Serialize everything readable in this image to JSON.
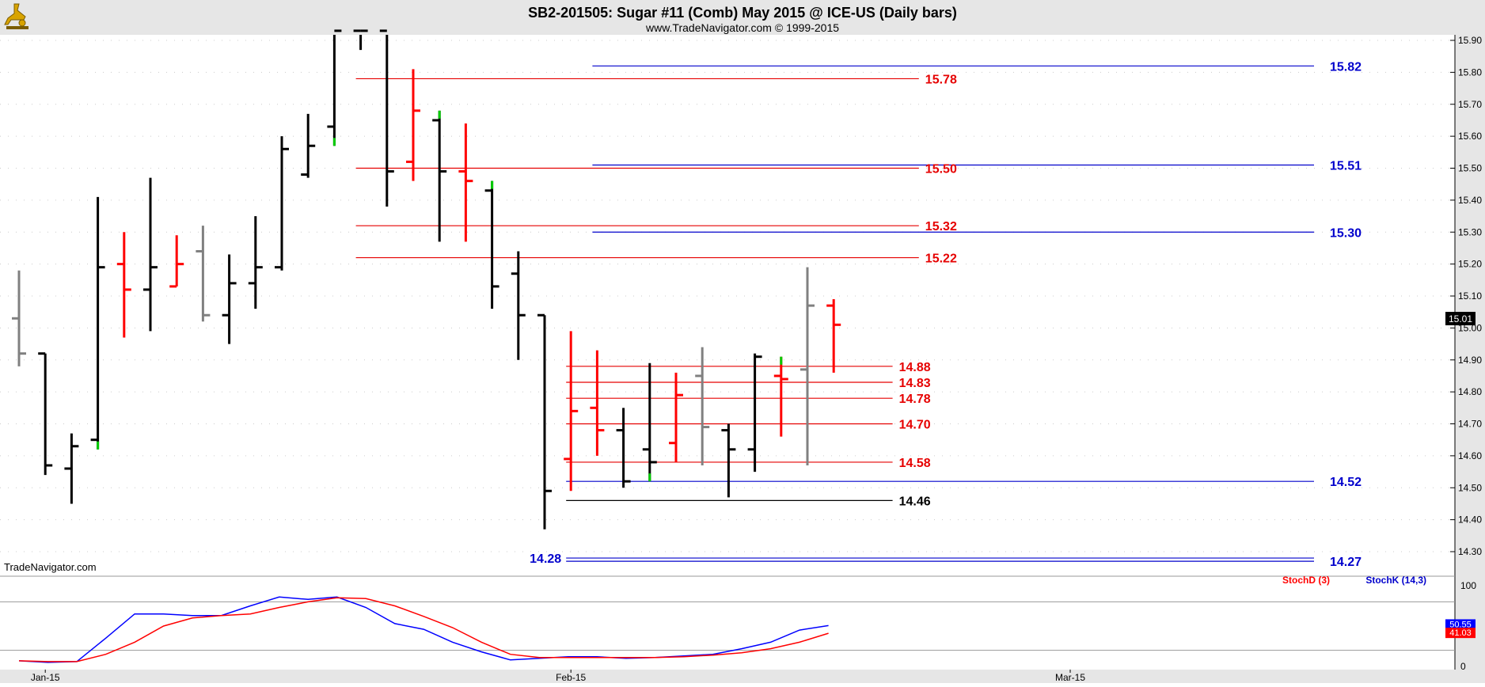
{
  "header": {
    "title": "SB2-201505:  Sugar #11 (Comb) May 2015 @ ICE-US  (Daily bars)",
    "subtitle": "www.TradeNavigator.com © 1999-2015",
    "logo_icon": "trade-navigator-logo-icon"
  },
  "watermark": "TradeNavigator.com",
  "colors": {
    "background": "#ffffff",
    "frame": "#e6e6e6",
    "black_bar": "#000000",
    "red_bar": "#ff0000",
    "gray_bar": "#808080",
    "green_accent": "#00cc00",
    "red_level": "#e60000",
    "blue_level": "#0000cc",
    "black_level": "#000000",
    "stoch_d": "#ff0000",
    "stoch_k": "#0000ff"
  },
  "chart_data": [
    {
      "type": "ohlc",
      "title": "SB2-201505:  Sugar #11 (Comb) May 2015 @ ICE-US  (Daily bars)",
      "ylim": [
        14.2,
        15.93
      ],
      "y_ticks": [
        "15.90",
        "15.80",
        "15.70",
        "15.60",
        "15.50",
        "15.40",
        "15.30",
        "15.20",
        "15.10",
        "15.00",
        "14.90",
        "14.80",
        "14.70",
        "14.60",
        "14.50",
        "14.40",
        "14.30"
      ],
      "x_labels": [
        {
          "label": "Jan-15",
          "bar": 1
        },
        {
          "label": "Feb-15",
          "bar": 21
        },
        {
          "label": "Mar-15",
          "bar": 40
        }
      ],
      "last_price": "15.01",
      "bars": [
        {
          "o": 15.03,
          "h": 15.18,
          "l": 14.88,
          "c": 14.92,
          "color": "gray"
        },
        {
          "o": 14.92,
          "h": 14.92,
          "l": 14.54,
          "c": 14.57,
          "color": "black"
        },
        {
          "o": 14.56,
          "h": 14.67,
          "l": 14.45,
          "c": 14.63,
          "color": "black"
        },
        {
          "o": 14.65,
          "h": 15.41,
          "l": 14.62,
          "c": 15.19,
          "color": "black",
          "green_tail": "low"
        },
        {
          "o": 15.2,
          "h": 15.3,
          "l": 14.97,
          "c": 15.12,
          "color": "red"
        },
        {
          "o": 15.12,
          "h": 15.47,
          "l": 14.99,
          "c": 15.19,
          "color": "black"
        },
        {
          "o": 15.13,
          "h": 15.29,
          "l": 15.13,
          "c": 15.2,
          "color": "red"
        },
        {
          "o": 15.24,
          "h": 15.32,
          "l": 15.02,
          "c": 15.04,
          "color": "gray"
        },
        {
          "o": 15.04,
          "h": 15.23,
          "l": 14.95,
          "c": 15.14,
          "color": "black"
        },
        {
          "o": 15.14,
          "h": 15.35,
          "l": 15.06,
          "c": 15.19,
          "color": "black"
        },
        {
          "o": 15.19,
          "h": 15.6,
          "l": 15.18,
          "c": 15.56,
          "color": "black"
        },
        {
          "o": 15.48,
          "h": 15.67,
          "l": 15.47,
          "c": 15.57,
          "color": "black"
        },
        {
          "o": 15.63,
          "h": 15.93,
          "l": 15.57,
          "c": 15.93,
          "color": "black",
          "green_tail": "low"
        },
        {
          "o": 15.93,
          "h": 15.93,
          "l": 15.87,
          "c": 15.93,
          "color": "black"
        },
        {
          "o": 15.93,
          "h": 15.93,
          "l": 15.38,
          "c": 15.49,
          "color": "black"
        },
        {
          "o": 15.52,
          "h": 15.81,
          "l": 15.46,
          "c": 15.68,
          "color": "red"
        },
        {
          "o": 15.65,
          "h": 15.68,
          "l": 15.27,
          "c": 15.49,
          "color": "black",
          "green_tail": "high"
        },
        {
          "o": 15.49,
          "h": 15.64,
          "l": 15.27,
          "c": 15.46,
          "color": "red"
        },
        {
          "o": 15.43,
          "h": 15.46,
          "l": 15.06,
          "c": 15.13,
          "color": "black",
          "green_tail": "high"
        },
        {
          "o": 15.17,
          "h": 15.24,
          "l": 14.9,
          "c": 15.04,
          "color": "black"
        },
        {
          "o": 15.04,
          "h": 15.04,
          "l": 14.37,
          "c": 14.49,
          "color": "black"
        },
        {
          "o": 14.59,
          "h": 14.99,
          "l": 14.49,
          "c": 14.74,
          "color": "red"
        },
        {
          "o": 14.75,
          "h": 14.93,
          "l": 14.6,
          "c": 14.68,
          "color": "red"
        },
        {
          "o": 14.68,
          "h": 14.75,
          "l": 14.5,
          "c": 14.52,
          "color": "black"
        },
        {
          "o": 14.62,
          "h": 14.89,
          "l": 14.52,
          "c": 14.58,
          "color": "black",
          "green_tail": "low"
        },
        {
          "o": 14.64,
          "h": 14.86,
          "l": 14.58,
          "c": 14.79,
          "color": "red"
        },
        {
          "o": 14.85,
          "h": 14.94,
          "l": 14.57,
          "c": 14.69,
          "color": "gray"
        },
        {
          "o": 14.68,
          "h": 14.7,
          "l": 14.47,
          "c": 14.62,
          "color": "black"
        },
        {
          "o": 14.62,
          "h": 14.92,
          "l": 14.55,
          "c": 14.91,
          "color": "black"
        },
        {
          "o": 14.85,
          "h": 14.91,
          "l": 14.66,
          "c": 14.84,
          "color": "red",
          "green_tail": "high"
        },
        {
          "o": 14.87,
          "h": 15.19,
          "l": 14.57,
          "c": 15.07,
          "color": "gray"
        },
        {
          "o": 15.07,
          "h": 15.09,
          "l": 14.86,
          "c": 15.01,
          "color": "red"
        }
      ],
      "levels": [
        {
          "price": 15.82,
          "label": "15.82",
          "color": "blue",
          "from_bar": 22,
          "to_bar": 41,
          "label_side": "right"
        },
        {
          "price": 15.78,
          "label": "15.78",
          "color": "red",
          "from_bar": 13,
          "to_bar": 34,
          "label_side": "end"
        },
        {
          "price": 15.51,
          "label": "15.51",
          "color": "blue",
          "from_bar": 22,
          "to_bar": 41,
          "label_side": "right"
        },
        {
          "price": 15.5,
          "label": "15.50",
          "color": "red",
          "from_bar": 13,
          "to_bar": 34,
          "label_side": "end"
        },
        {
          "price": 15.32,
          "label": "15.32",
          "color": "red",
          "from_bar": 13,
          "to_bar": 34,
          "label_side": "end"
        },
        {
          "price": 15.3,
          "label": "15.30",
          "color": "blue",
          "from_bar": 22,
          "to_bar": 41,
          "label_side": "right"
        },
        {
          "price": 15.22,
          "label": "15.22",
          "color": "red",
          "from_bar": 13,
          "to_bar": 34,
          "label_side": "end"
        },
        {
          "price": 14.88,
          "label": "14.88",
          "color": "red",
          "from_bar": 21,
          "to_bar": 33,
          "label_side": "end"
        },
        {
          "price": 14.83,
          "label": "14.83",
          "color": "red",
          "from_bar": 21,
          "to_bar": 33,
          "label_side": "end"
        },
        {
          "price": 14.78,
          "label": "14.78",
          "color": "red",
          "from_bar": 21,
          "to_bar": 33,
          "label_side": "end"
        },
        {
          "price": 14.7,
          "label": "14.70",
          "color": "red",
          "from_bar": 21,
          "to_bar": 33,
          "label_side": "end"
        },
        {
          "price": 14.58,
          "label": "14.58",
          "color": "red",
          "from_bar": 21,
          "to_bar": 33,
          "label_side": "end"
        },
        {
          "price": 14.52,
          "label": "14.52",
          "color": "blue",
          "from_bar": 21,
          "to_bar": 41,
          "label_side": "right"
        },
        {
          "price": 14.46,
          "label": "14.46",
          "color": "black",
          "from_bar": 21,
          "to_bar": 33,
          "label_side": "end"
        },
        {
          "price": 14.28,
          "label": "14.28",
          "color": "blue",
          "from_bar": 21,
          "to_bar": 41,
          "label_side": "left"
        },
        {
          "price": 14.27,
          "label": "14.27",
          "color": "blue",
          "from_bar": 21,
          "to_bar": 41,
          "label_side": "right"
        }
      ]
    },
    {
      "type": "line",
      "ylim": [
        0,
        100
      ],
      "y_ticks": [
        "100",
        "50",
        "0"
      ],
      "reference_lines": [
        80,
        20
      ],
      "legend": [
        "StochD (3)",
        "StochK (14,3)"
      ],
      "last_k": "50.55",
      "last_d": "41.03",
      "series": [
        {
          "name": "StochK (14,3)",
          "color": "blue",
          "values": [
            7,
            5,
            6,
            35,
            65,
            65,
            63,
            63,
            75,
            86,
            83,
            86,
            73,
            53,
            46,
            30,
            18,
            8,
            10,
            12,
            12,
            10,
            11,
            13,
            15,
            22,
            30,
            45,
            50.55
          ]
        },
        {
          "name": "StochD (3)",
          "color": "red",
          "values": [
            7,
            6,
            6,
            15,
            30,
            50,
            60,
            63,
            65,
            73,
            80,
            85,
            84,
            75,
            62,
            48,
            30,
            15,
            11,
            11,
            11,
            11,
            11,
            12,
            14,
            17,
            22,
            30,
            41.03
          ]
        }
      ],
      "series_start_bar": 0,
      "series_step": 1.1
    }
  ]
}
